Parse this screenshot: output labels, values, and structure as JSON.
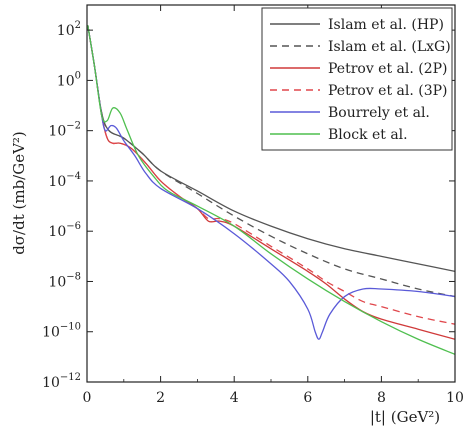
{
  "chart_data": {
    "type": "line",
    "xlabel": "|t|  (GeV²)",
    "ylabel": "dσ/dt  (mb/GeV²)",
    "xlim": [
      0,
      10
    ],
    "ylim_exp": [
      -12,
      3
    ],
    "yscale": "log",
    "x_ticks": [
      0,
      2,
      4,
      6,
      8,
      10
    ],
    "y_ticks_exp": [
      -12,
      -10,
      -8,
      -6,
      -4,
      -2,
      0,
      2
    ],
    "legend_position": "top-right",
    "grid": false,
    "series": [
      {
        "name": "Islam et al. (HP)",
        "color": "#555555",
        "dash": "solid",
        "x": [
          0.02,
          0.2,
          0.4,
          0.6,
          1.0,
          1.5,
          2.0,
          3.0,
          4.0,
          5.0,
          6.0,
          7.0,
          8.0,
          9.0,
          10.0
        ],
        "log10y": [
          2.2,
          0.6,
          -1.3,
          -2.0,
          -2.3,
          -2.9,
          -3.6,
          -4.4,
          -5.2,
          -5.8,
          -6.3,
          -6.7,
          -7.0,
          -7.3,
          -7.6
        ]
      },
      {
        "name": "Islam et al. (LxG)",
        "color": "#555555",
        "dash": "dashed",
        "x": [
          0.02,
          0.2,
          0.4,
          0.6,
          1.0,
          1.5,
          2.0,
          3.0,
          4.0,
          5.0,
          6.0,
          7.0,
          8.0,
          9.0,
          10.0
        ],
        "log10y": [
          2.2,
          0.6,
          -1.3,
          -2.0,
          -2.3,
          -2.9,
          -3.6,
          -4.5,
          -5.4,
          -6.2,
          -6.9,
          -7.5,
          -7.9,
          -8.3,
          -8.6
        ]
      },
      {
        "name": "Petrov et al. (2P)",
        "color": "#d03a3a",
        "dash": "solid",
        "x": [
          0.02,
          0.2,
          0.4,
          0.55,
          0.7,
          0.9,
          1.2,
          1.6,
          2.0,
          2.5,
          3.0,
          3.3,
          3.6,
          4.0,
          5.0,
          6.0,
          6.5,
          7.0,
          7.5,
          8.0,
          9.0,
          10.0
        ],
        "log10y": [
          2.2,
          0.6,
          -1.4,
          -2.3,
          -2.5,
          -2.5,
          -2.7,
          -3.3,
          -4.0,
          -4.6,
          -5.1,
          -5.6,
          -5.6,
          -5.8,
          -6.7,
          -7.6,
          -8.1,
          -8.7,
          -9.2,
          -9.5,
          -9.9,
          -10.3
        ]
      },
      {
        "name": "Petrov et al. (3P)",
        "color": "#e0474c",
        "dash": "dashed",
        "x": [
          0.02,
          0.2,
          0.4,
          0.55,
          0.7,
          0.9,
          1.2,
          1.6,
          2.0,
          2.5,
          3.0,
          3.3,
          3.6,
          4.0,
          5.0,
          6.0,
          6.5,
          7.0,
          7.5,
          8.0,
          9.0,
          10.0
        ],
        "log10y": [
          2.2,
          0.6,
          -1.4,
          -2.3,
          -2.5,
          -2.5,
          -2.7,
          -3.3,
          -4.0,
          -4.6,
          -5.1,
          -5.5,
          -5.5,
          -5.7,
          -6.6,
          -7.5,
          -8.0,
          -8.4,
          -8.8,
          -9.0,
          -9.4,
          -9.7
        ]
      },
      {
        "name": "Bourrely et al.",
        "color": "#5a5ad8",
        "dash": "solid",
        "x": [
          0.02,
          0.2,
          0.4,
          0.5,
          0.65,
          0.8,
          1.0,
          1.3,
          1.6,
          2.0,
          3.0,
          4.0,
          5.0,
          5.5,
          6.0,
          6.2,
          6.3,
          6.4,
          6.6,
          7.0,
          7.5,
          8.0,
          9.0,
          10.0
        ],
        "log10y": [
          2.2,
          0.6,
          -1.4,
          -2.0,
          -1.8,
          -1.9,
          -2.4,
          -3.0,
          -3.7,
          -4.3,
          -5.1,
          -6.1,
          -7.3,
          -8.0,
          -9.1,
          -10.0,
          -10.3,
          -10.0,
          -9.3,
          -8.6,
          -8.3,
          -8.3,
          -8.4,
          -8.6
        ]
      },
      {
        "name": "Block et al.",
        "color": "#4fbf4f",
        "dash": "solid",
        "x": [
          0.02,
          0.2,
          0.4,
          0.55,
          0.7,
          0.9,
          1.1,
          1.4,
          1.8,
          2.2,
          3.0,
          4.0,
          5.0,
          6.0,
          7.0,
          8.0,
          9.0,
          10.0
        ],
        "log10y": [
          2.2,
          0.6,
          -1.4,
          -1.6,
          -1.1,
          -1.3,
          -2.0,
          -3.0,
          -3.8,
          -4.4,
          -5.0,
          -5.8,
          -6.9,
          -7.9,
          -8.8,
          -9.6,
          -10.3,
          -10.9
        ]
      }
    ]
  }
}
